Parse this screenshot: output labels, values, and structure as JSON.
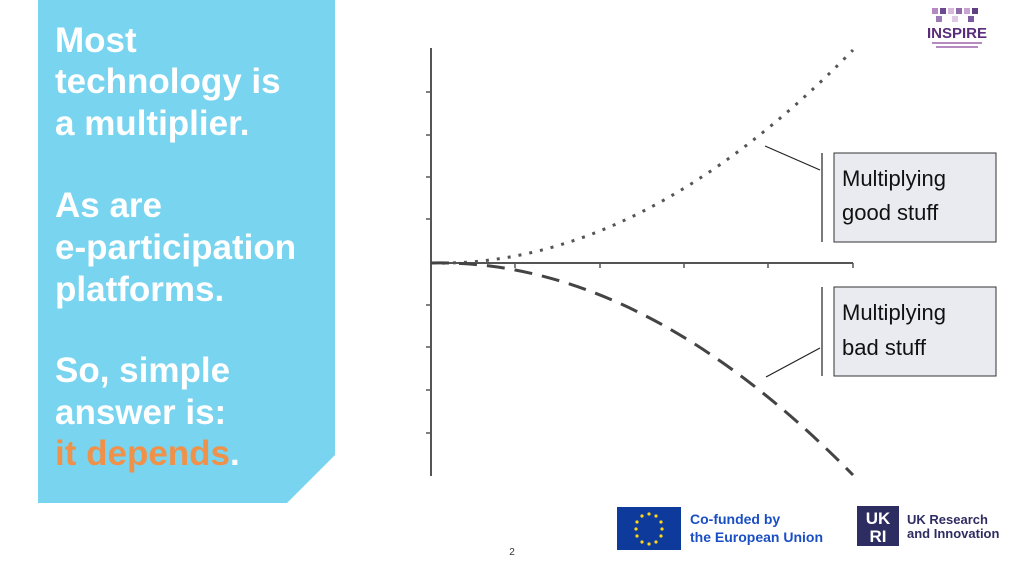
{
  "panel": {
    "paragraphs": [
      {
        "lines": [
          "Most",
          "technology is",
          "a multiplier."
        ]
      },
      {
        "lines": [
          "As are",
          "e-participation",
          "platforms."
        ]
      },
      {
        "lines": [
          "So, simple",
          "answer is:"
        ],
        "highlight": "it depends",
        "end": "."
      }
    ]
  },
  "callouts": [
    {
      "lines": [
        "Multiplying",
        "good stuff"
      ]
    },
    {
      "lines": [
        "Multiplying",
        "bad stuff"
      ]
    }
  ],
  "logo": {
    "text": "INSPIRE"
  },
  "footer": {
    "eu": {
      "lines": [
        "Co-funded by",
        "the European Union"
      ]
    },
    "ukri": {
      "mark": [
        "UK",
        "RI"
      ],
      "lines": [
        "UK Research",
        "and Innovation"
      ]
    },
    "page_number": "2"
  }
}
